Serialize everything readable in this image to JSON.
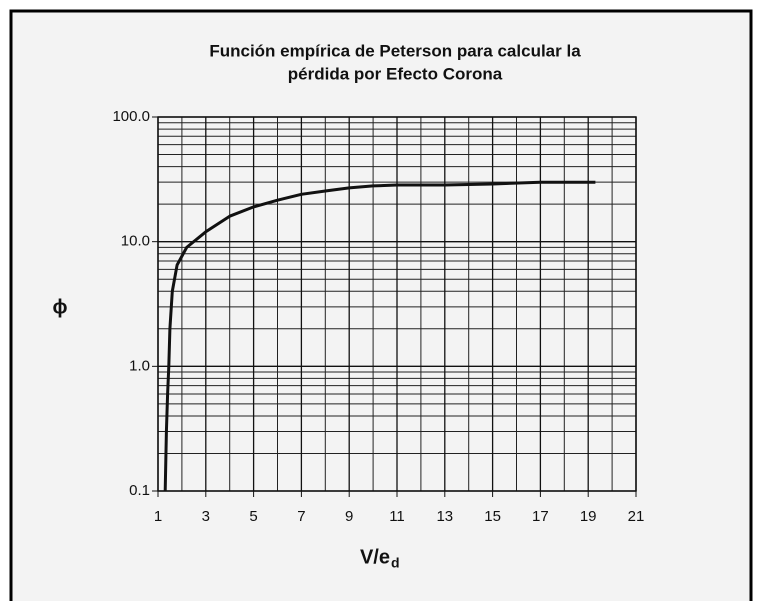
{
  "chart_data": {
    "type": "line",
    "title": [
      "Función empírica de Peterson para calcular la",
      "pérdida por Efecto Corona"
    ],
    "xlabel": "V/e",
    "xlabel_subscript": "d",
    "ylabel": "ϕ",
    "x": [
      1.3,
      1.35,
      1.4,
      1.45,
      1.5,
      1.6,
      1.8,
      2.2,
      3,
      4,
      5,
      6,
      7,
      8,
      9,
      10,
      11,
      13,
      15,
      17,
      19.3
    ],
    "series": [
      {
        "name": "ϕ",
        "color": "#111111",
        "values": [
          0.1,
          0.3,
          0.6,
          1,
          2,
          4,
          6.5,
          9,
          12,
          16,
          19,
          21.5,
          24,
          25.5,
          27,
          28,
          28.5,
          28.5,
          29,
          30,
          30
        ]
      }
    ],
    "xlim": [
      1,
      21
    ],
    "xticks": [
      1,
      3,
      5,
      7,
      9,
      11,
      13,
      15,
      17,
      19,
      21
    ],
    "xminorticks": [
      2,
      4,
      6,
      8,
      10,
      12,
      14,
      16,
      18,
      20
    ],
    "ylim": [
      0.1,
      100
    ],
    "yscale": "log",
    "yticks": [
      {
        "value": 100,
        "label": "100.0"
      },
      {
        "value": 10,
        "label": "10.0"
      },
      {
        "value": 1,
        "label": "1.0"
      },
      0.1
    ],
    "yminorticks": [
      0.2,
      0.3,
      0.4,
      0.5,
      0.6,
      0.7,
      0.8,
      0.9,
      2,
      3,
      4,
      5,
      6,
      7,
      8,
      9,
      20,
      30,
      40,
      50,
      60,
      70,
      80,
      90
    ],
    "grid": true
  }
}
